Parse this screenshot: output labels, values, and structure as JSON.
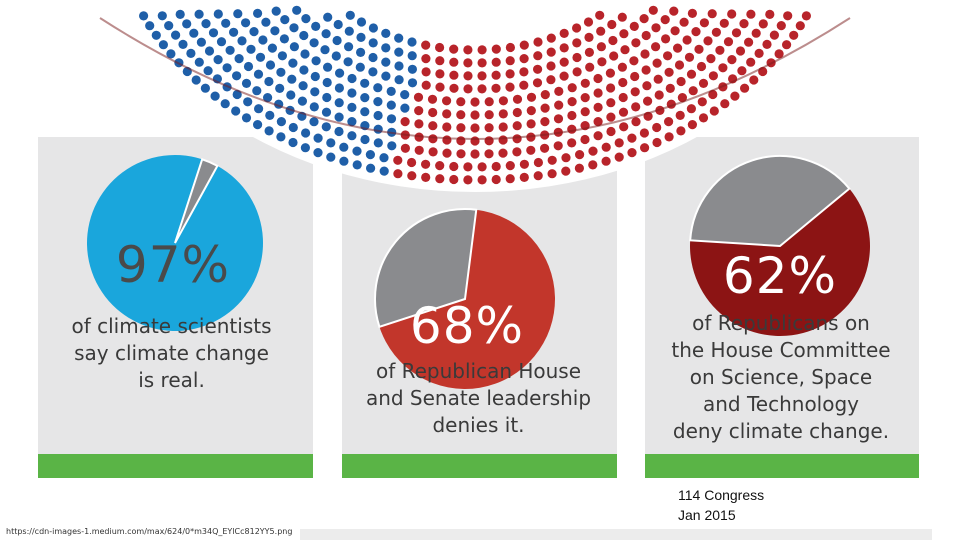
{
  "colors": {
    "blue_dots": "#1f5fa8",
    "red_dots": "#b8242a",
    "panel_bg": "#e6e6e7",
    "green_bar": "#5ab446",
    "pie_gray": "#8a8b8e",
    "pie1": "#1aa6dc",
    "pie2": "#c2362b",
    "pie3": "#8c1414"
  },
  "chart_data": [
    {
      "type": "pie",
      "title": "97%",
      "caption": [
        "of climate scientists",
        "say climate change",
        "is real."
      ],
      "slices": [
        {
          "label": "97%",
          "value": 97
        },
        {
          "label": "",
          "value": 3
        }
      ]
    },
    {
      "type": "pie",
      "title": "68%",
      "caption": [
        "of Republican House",
        "and Senate leadership",
        "denies it."
      ],
      "slices": [
        {
          "label": "68%",
          "value": 68
        },
        {
          "label": "",
          "value": 32
        }
      ]
    },
    {
      "type": "pie",
      "title": "62%",
      "caption": [
        "of Republicans on",
        "the House Committee",
        "on Science, Space",
        "and Technology",
        "deny climate change."
      ],
      "slices": [
        {
          "label": "62%",
          "value": 62
        },
        {
          "label": "",
          "value": 38
        }
      ]
    }
  ],
  "footer": {
    "source": "https://cdn-images-1.medium.com/max/624/0*m34Q_EYlCc812YY5.png",
    "note_line1": "114 Congress",
    "note_line2": "Jan 2015"
  }
}
